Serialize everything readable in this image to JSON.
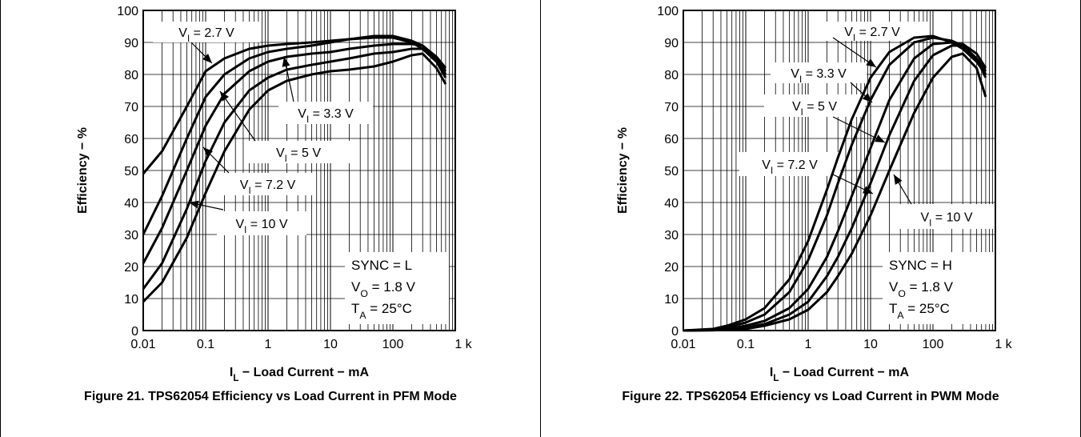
{
  "chart_data": [
    {
      "type": "line",
      "title": "",
      "caption": "Figure 21. TPS62054 Efficiency vs Load Current in PFM Mode",
      "xlabel": {
        "main": "I",
        "sub": "L",
        "rest": " − Load Current − mA"
      },
      "ylabel": "Efficiency − %",
      "x_scale": "log",
      "xlim": [
        0.01,
        1000
      ],
      "ylim": [
        0,
        100
      ],
      "x_ticks": [
        0.01,
        0.1,
        1,
        10,
        100,
        1000
      ],
      "x_tick_labels": [
        "0.01",
        "0.1",
        "1",
        "10",
        "100",
        "1 k"
      ],
      "y_ticks": [
        0,
        10,
        20,
        30,
        40,
        50,
        60,
        70,
        80,
        90,
        100
      ],
      "y_tick_labels": [
        "0",
        "10",
        "20",
        "30",
        "40",
        "50",
        "60",
        "70",
        "80",
        "90",
        "100"
      ],
      "grid": true,
      "series": [
        {
          "name": "VI = 2.7 V",
          "label": {
            "main": "V",
            "sub": "I",
            "rest": " = 2.7 V"
          },
          "x": [
            0.01,
            0.02,
            0.05,
            0.1,
            0.2,
            0.5,
            1,
            2,
            5,
            10,
            20,
            50,
            100,
            200,
            300,
            500,
            700
          ],
          "y": [
            49,
            56,
            70,
            81,
            85,
            88,
            89,
            89.5,
            90,
            90.5,
            91,
            91.5,
            91.5,
            90,
            88,
            84,
            80
          ]
        },
        {
          "name": "VI = 3.3 V",
          "label": {
            "main": "V",
            "sub": "I",
            "rest": " = 3.3 V"
          },
          "x": [
            0.01,
            0.02,
            0.05,
            0.1,
            0.2,
            0.5,
            1,
            2,
            5,
            10,
            20,
            50,
            100,
            200,
            300,
            500,
            700
          ],
          "y": [
            30,
            42,
            60,
            73,
            80,
            85,
            87,
            88,
            89,
            90,
            91,
            92,
            92,
            90.5,
            89,
            85,
            81
          ]
        },
        {
          "name": "VI = 5 V",
          "label": {
            "main": "V",
            "sub": "I",
            "rest": " = 5 V"
          },
          "x": [
            0.01,
            0.02,
            0.05,
            0.1,
            0.2,
            0.5,
            1,
            2,
            5,
            10,
            20,
            50,
            100,
            200,
            300,
            500,
            700
          ],
          "y": [
            21,
            32,
            50,
            64,
            74,
            81,
            84,
            85.5,
            86.5,
            87,
            88,
            89,
            89.5,
            89.5,
            89,
            85.5,
            82
          ]
        },
        {
          "name": "VI = 7.2 V",
          "label": {
            "main": "V",
            "sub": "I",
            "rest": " = 7.2 V"
          },
          "x": [
            0.01,
            0.02,
            0.05,
            0.1,
            0.2,
            0.5,
            1,
            2,
            5,
            10,
            20,
            50,
            100,
            200,
            300,
            500,
            700
          ],
          "y": [
            13,
            21,
            38,
            53,
            65,
            75,
            79,
            81.5,
            83,
            84,
            85,
            86.5,
            87,
            88,
            88,
            84,
            79
          ]
        },
        {
          "name": "VI = 10 V",
          "label": {
            "main": "V",
            "sub": "I",
            "rest": " = 10 V"
          },
          "x": [
            0.01,
            0.02,
            0.05,
            0.1,
            0.2,
            0.5,
            1,
            2,
            5,
            10,
            20,
            50,
            100,
            200,
            300,
            500,
            700
          ],
          "y": [
            9,
            15,
            29,
            43,
            56,
            69,
            75,
            78,
            80,
            81,
            81.5,
            82.5,
            84,
            86,
            86.5,
            82,
            77
          ]
        }
      ],
      "annotations": [
        {
          "main": "SYNC = L"
        },
        {
          "main": "V",
          "sub": "O",
          "rest": " = 1.8 V"
        },
        {
          "main": "T",
          "sub": "A",
          "rest": " = 25°C"
        }
      ]
    },
    {
      "type": "line",
      "title": "",
      "caption": "Figure 22. TPS62054 Efficiency vs Load Current in PWM Mode",
      "xlabel": {
        "main": "I",
        "sub": "L",
        "rest": " − Load Current − mA"
      },
      "ylabel": "Efficiency − %",
      "x_scale": "log",
      "xlim": [
        0.01,
        1000
      ],
      "ylim": [
        0,
        100
      ],
      "x_ticks": [
        0.01,
        0.1,
        1,
        10,
        100,
        1000
      ],
      "x_tick_labels": [
        "0.01",
        "0.1",
        "1",
        "10",
        "100",
        "1 k"
      ],
      "y_ticks": [
        0,
        10,
        20,
        30,
        40,
        50,
        60,
        70,
        80,
        90,
        100
      ],
      "y_tick_labels": [
        "0",
        "10",
        "20",
        "30",
        "40",
        "50",
        "60",
        "70",
        "80",
        "90",
        "100"
      ],
      "grid": true,
      "series": [
        {
          "name": "VI = 2.7 V",
          "label": {
            "main": "V",
            "sub": "I",
            "rest": " = 2.7 V"
          },
          "x": [
            0.01,
            0.03,
            0.05,
            0.1,
            0.2,
            0.5,
            1,
            2,
            3,
            5,
            10,
            20,
            50,
            100,
            200,
            300,
            500,
            700
          ],
          "y": [
            0,
            0.5,
            1.5,
            3.5,
            7,
            16,
            28,
            44,
            54,
            66,
            79,
            87,
            91.5,
            92,
            90,
            88,
            84,
            80
          ]
        },
        {
          "name": "VI = 3.3 V",
          "label": {
            "main": "V",
            "sub": "I",
            "rest": " = 3.3 V"
          },
          "x": [
            0.01,
            0.03,
            0.05,
            0.1,
            0.2,
            0.5,
            1,
            2,
            3,
            5,
            10,
            20,
            50,
            100,
            200,
            300,
            500,
            700
          ],
          "y": [
            0,
            0.3,
            1,
            2.5,
            5,
            12,
            22,
            36,
            46,
            58,
            72,
            83,
            90,
            91.5,
            90.5,
            89,
            85,
            81
          ]
        },
        {
          "name": "VI = 5 V",
          "label": {
            "main": "V",
            "sub": "I",
            "rest": " = 5 V"
          },
          "x": [
            0.01,
            0.03,
            0.05,
            0.1,
            0.2,
            0.5,
            1,
            2,
            3,
            5,
            10,
            20,
            50,
            100,
            200,
            300,
            500,
            700
          ],
          "y": [
            0,
            0.2,
            0.5,
            1.5,
            3,
            7,
            13,
            23,
            31,
            42,
            57,
            72,
            85,
            89.5,
            90,
            89.5,
            86.5,
            82
          ]
        },
        {
          "name": "VI = 7.2 V",
          "label": {
            "main": "V",
            "sub": "I",
            "rest": " = 7.2 V"
          },
          "x": [
            0.01,
            0.03,
            0.05,
            0.1,
            0.2,
            0.5,
            1,
            2,
            3,
            5,
            10,
            20,
            50,
            100,
            200,
            300,
            500,
            700
          ],
          "y": [
            0,
            0.1,
            0.3,
            1,
            2,
            5,
            9,
            17,
            23,
            32,
            46,
            61,
            78,
            86,
            89,
            89,
            85,
            79
          ]
        },
        {
          "name": "VI = 10 V",
          "label": {
            "main": "V",
            "sub": "I",
            "rest": " = 10 V"
          },
          "x": [
            0.01,
            0.03,
            0.05,
            0.1,
            0.2,
            0.5,
            1,
            2,
            3,
            5,
            10,
            20,
            50,
            100,
            200,
            300,
            500,
            700
          ],
          "y": [
            0,
            0.1,
            0.2,
            0.5,
            1.5,
            3.5,
            6.5,
            12,
            17,
            24,
            36,
            50,
            68,
            79,
            85.5,
            86.5,
            82,
            73
          ]
        }
      ],
      "annotations": [
        {
          "main": "SYNC = H"
        },
        {
          "main": "V",
          "sub": "O",
          "rest": " = 1.8 V"
        },
        {
          "main": "T",
          "sub": "A",
          "rest": " = 25°C"
        }
      ]
    }
  ]
}
